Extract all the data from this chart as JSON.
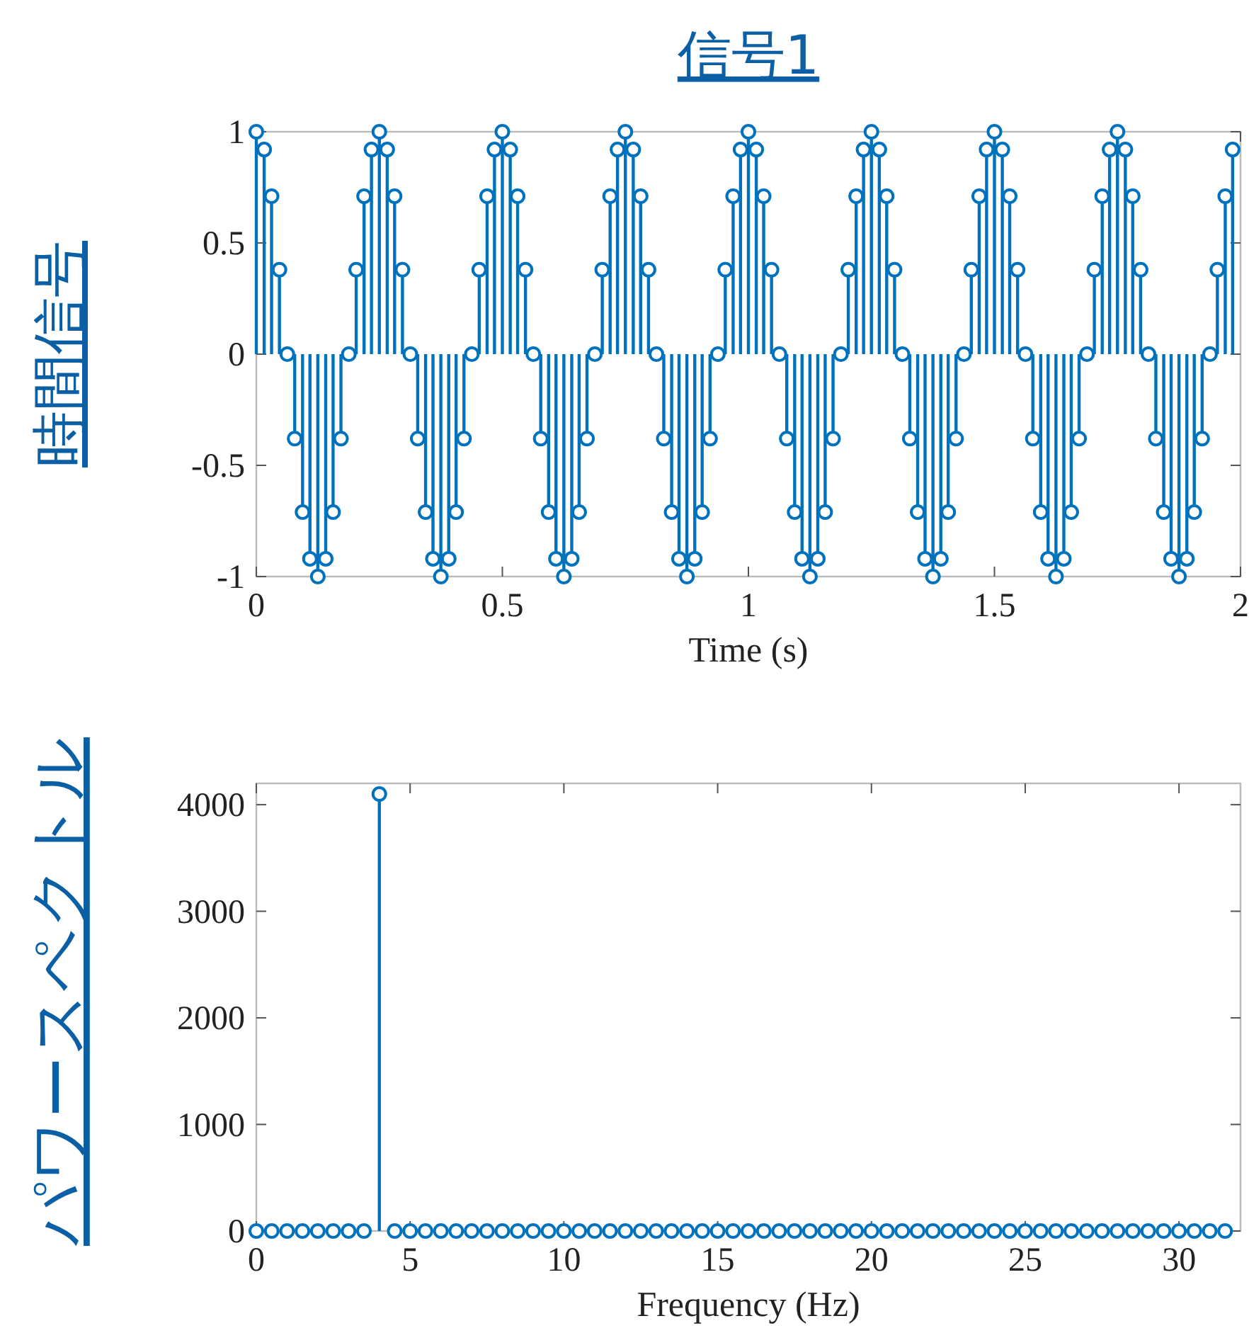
{
  "chart_data": [
    {
      "type": "lollipop",
      "title": "信号1",
      "ylabel": "時間信号",
      "xlabel": "Time (s)",
      "xlim": [
        0,
        2
      ],
      "xticks": [
        0,
        0.5,
        1,
        1.5,
        2
      ],
      "ylim": [
        -1,
        1
      ],
      "yticks": [
        -1,
        -0.5,
        0,
        0.5,
        1
      ],
      "marker": "circle",
      "series": [
        {
          "color": "#0072bd",
          "x": [
            0,
            0.016,
            0.031,
            0.047,
            0.063,
            0.078,
            0.094,
            0.109,
            0.125,
            0.141,
            0.156,
            0.172,
            0.188,
            0.203,
            0.219,
            0.234,
            0.25,
            0.266,
            0.281,
            0.297,
            0.313,
            0.328,
            0.344,
            0.359,
            0.375,
            0.391,
            0.406,
            0.422,
            0.438,
            0.453,
            0.469,
            0.484,
            0.5,
            0.516,
            0.531,
            0.547,
            0.563,
            0.578,
            0.594,
            0.609,
            0.625,
            0.641,
            0.656,
            0.672,
            0.688,
            0.703,
            0.719,
            0.734,
            0.75,
            0.766,
            0.781,
            0.797,
            0.813,
            0.828,
            0.844,
            0.859,
            0.875,
            0.891,
            0.906,
            0.922,
            0.938,
            0.953,
            0.969,
            0.984,
            1,
            1.016,
            1.031,
            1.047,
            1.063,
            1.078,
            1.094,
            1.109,
            1.125,
            1.141,
            1.156,
            1.172,
            1.188,
            1.203,
            1.219,
            1.234,
            1.25,
            1.266,
            1.281,
            1.297,
            1.313,
            1.328,
            1.344,
            1.359,
            1.375,
            1.391,
            1.406,
            1.422,
            1.438,
            1.453,
            1.469,
            1.484,
            1.5,
            1.516,
            1.531,
            1.547,
            1.563,
            1.578,
            1.594,
            1.609,
            1.625,
            1.641,
            1.656,
            1.672,
            1.688,
            1.703,
            1.719,
            1.734,
            1.75,
            1.766,
            1.781,
            1.797,
            1.813,
            1.828,
            1.844,
            1.859,
            1.875,
            1.891,
            1.906,
            1.922,
            1.938,
            1.953,
            1.969,
            1.984
          ],
          "values": [
            1,
            0.92,
            0.71,
            0.38,
            0,
            -0.38,
            -0.71,
            -0.92,
            -1,
            -0.92,
            -0.71,
            -0.38,
            0,
            0.38,
            0.71,
            0.92,
            1,
            0.92,
            0.71,
            0.38,
            0,
            -0.38,
            -0.71,
            -0.92,
            -1,
            -0.92,
            -0.71,
            -0.38,
            0,
            0.38,
            0.71,
            0.92,
            1,
            0.92,
            0.71,
            0.38,
            0,
            -0.38,
            -0.71,
            -0.92,
            -1,
            -0.92,
            -0.71,
            -0.38,
            0,
            0.38,
            0.71,
            0.92,
            1,
            0.92,
            0.71,
            0.38,
            0,
            -0.38,
            -0.71,
            -0.92,
            -1,
            -0.92,
            -0.71,
            -0.38,
            0,
            0.38,
            0.71,
            0.92,
            1,
            0.92,
            0.71,
            0.38,
            0,
            -0.38,
            -0.71,
            -0.92,
            -1,
            -0.92,
            -0.71,
            -0.38,
            0,
            0.38,
            0.71,
            0.92,
            1,
            0.92,
            0.71,
            0.38,
            0,
            -0.38,
            -0.71,
            -0.92,
            -1,
            -0.92,
            -0.71,
            -0.38,
            0,
            0.38,
            0.71,
            0.92,
            1,
            0.92,
            0.71,
            0.38,
            0,
            -0.38,
            -0.71,
            -0.92,
            -1,
            -0.92,
            -0.71,
            -0.38,
            0,
            0.38,
            0.71,
            0.92,
            1,
            0.92,
            0.71,
            0.38,
            0,
            -0.38,
            -0.71,
            -0.92,
            -1,
            -0.92,
            -0.71,
            -0.38,
            0,
            0.38,
            0.71,
            0.92
          ]
        }
      ]
    },
    {
      "type": "lollipop",
      "ylabel": "パワースペクトル",
      "xlabel": "Frequency (Hz)",
      "xlim": [
        0,
        32
      ],
      "xticks": [
        0,
        5,
        10,
        15,
        20,
        25,
        30
      ],
      "ylim": [
        0,
        4200
      ],
      "yticks": [
        0,
        1000,
        2000,
        3000,
        4000
      ],
      "marker": "circle",
      "series": [
        {
          "color": "#0072bd",
          "x": [
            0,
            0.5,
            1,
            1.5,
            2,
            2.5,
            3,
            3.5,
            4,
            4.5,
            5,
            5.5,
            6,
            6.5,
            7,
            7.5,
            8,
            8.5,
            9,
            9.5,
            10,
            10.5,
            11,
            11.5,
            12,
            12.5,
            13,
            13.5,
            14,
            14.5,
            15,
            15.5,
            16,
            16.5,
            17,
            17.5,
            18,
            18.5,
            19,
            19.5,
            20,
            20.5,
            21,
            21.5,
            22,
            22.5,
            23,
            23.5,
            24,
            24.5,
            25,
            25.5,
            26,
            26.5,
            27,
            27.5,
            28,
            28.5,
            29,
            29.5,
            30,
            30.5,
            31,
            31.5
          ],
          "values": [
            0,
            0,
            0,
            0,
            0,
            0,
            0,
            0,
            4100,
            0,
            0,
            0,
            0,
            0,
            0,
            0,
            0,
            0,
            0,
            0,
            0,
            0,
            0,
            0,
            0,
            0,
            0,
            0,
            0,
            0,
            0,
            0,
            0,
            0,
            0,
            0,
            0,
            0,
            0,
            0,
            0,
            0,
            0,
            0,
            0,
            0,
            0,
            0,
            0,
            0,
            0,
            0,
            0,
            0,
            0,
            0,
            0,
            0,
            0,
            0,
            0,
            0,
            0,
            0
          ]
        }
      ]
    }
  ]
}
